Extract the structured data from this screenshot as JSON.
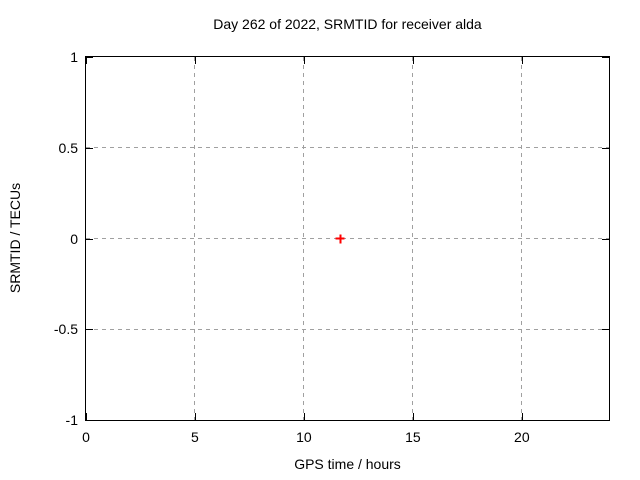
{
  "chart_data": {
    "type": "scatter",
    "title": "Day 262 of 2022, SRMTID for receiver alda",
    "xlabel": "GPS time / hours",
    "ylabel": "SRMTID / TECUs",
    "xlim": [
      0,
      24
    ],
    "ylim": [
      -1,
      1
    ],
    "x_ticks": {
      "values": [
        0,
        5,
        10,
        15,
        20
      ],
      "labels": [
        "0",
        "5",
        "10",
        "15",
        "20"
      ]
    },
    "y_ticks": {
      "values": [
        -1,
        -0.5,
        0,
        0.5,
        1
      ],
      "labels": [
        "-1",
        "-0.5",
        "0",
        "0.5",
        "1"
      ]
    },
    "grid": "dashed",
    "legend": "none",
    "series": [
      {
        "name": "SRMTID",
        "marker": "plus",
        "color": "#ff0000",
        "points": [
          {
            "x": 11.66,
            "y": 0.0
          }
        ]
      }
    ]
  },
  "colors": {
    "background": "#ffffff",
    "axis": "#000000",
    "grid": "#a0a0a0",
    "text": "#000000",
    "marker": "#ff0000"
  }
}
